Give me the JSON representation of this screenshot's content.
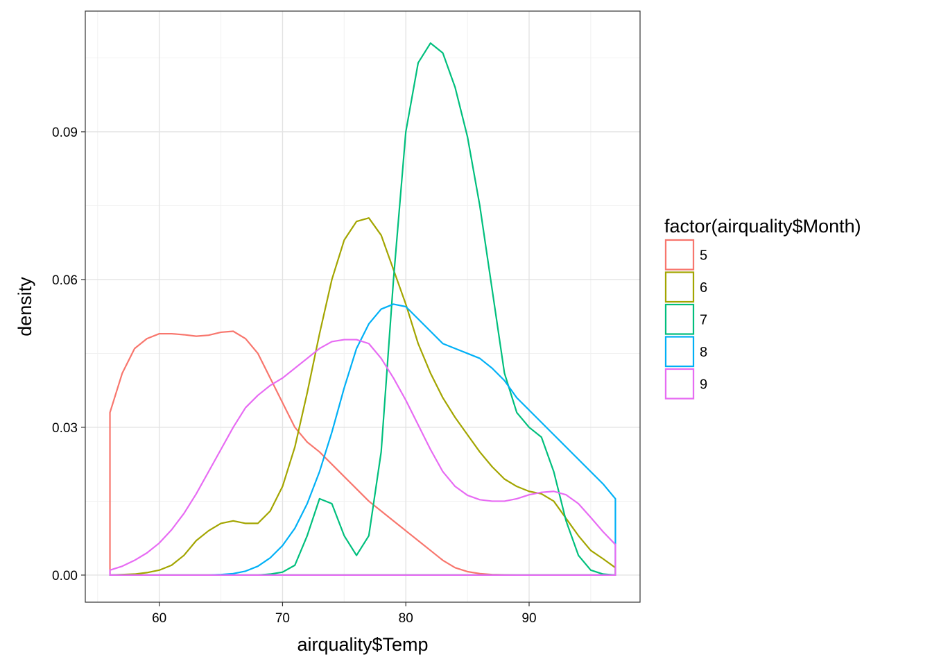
{
  "chart_data": {
    "type": "line",
    "subtype": "density",
    "xlabel": "airquality$Temp",
    "ylabel": "density",
    "xlim": [
      54.0,
      99.0
    ],
    "ylim": [
      -0.0055,
      0.1145
    ],
    "x_ticks": [
      60,
      70,
      80,
      90
    ],
    "x_tick_labels": [
      "60",
      "70",
      "80",
      "90"
    ],
    "x_minor_ticks": [
      55,
      65,
      75,
      85,
      95
    ],
    "y_ticks": [
      0.0,
      0.03,
      0.06,
      0.09
    ],
    "y_tick_labels": [
      "0.00",
      "0.03",
      "0.06",
      "0.09"
    ],
    "y_minor_ticks": [
      0.015,
      0.045,
      0.075,
      0.105
    ],
    "grid": true,
    "panel_border": true,
    "legend": {
      "title": "factor(airquality$Month)",
      "position": "right",
      "entries": [
        "5",
        "6",
        "7",
        "8",
        "9"
      ]
    },
    "series": [
      {
        "name": "5",
        "color": "#F8766D",
        "x": [
          56,
          57,
          58,
          59,
          60,
          61,
          62,
          63,
          64,
          65,
          66,
          67,
          68,
          69,
          70,
          71,
          72,
          73,
          74,
          75,
          76,
          77,
          78,
          79,
          80,
          81,
          82,
          83,
          84,
          85,
          86,
          87,
          88,
          89,
          90,
          91,
          92,
          93,
          94,
          95,
          96,
          97
        ],
        "y": [
          0.033,
          0.041,
          0.046,
          0.048,
          0.049,
          0.049,
          0.0488,
          0.0485,
          0.0487,
          0.0493,
          0.0495,
          0.048,
          0.045,
          0.04,
          0.035,
          0.03,
          0.027,
          0.025,
          0.0225,
          0.02,
          0.0175,
          0.015,
          0.013,
          0.011,
          0.009,
          0.007,
          0.005,
          0.003,
          0.0015,
          0.0007,
          0.0003,
          0.0001,
          5e-05,
          0,
          0,
          0,
          0,
          0,
          0,
          0,
          0,
          0
        ]
      },
      {
        "name": "6",
        "color": "#A3A500",
        "x": [
          56,
          57,
          58,
          59,
          60,
          61,
          62,
          63,
          64,
          65,
          66,
          67,
          68,
          69,
          70,
          71,
          72,
          73,
          74,
          75,
          76,
          77,
          78,
          79,
          80,
          81,
          82,
          83,
          84,
          85,
          86,
          87,
          88,
          89,
          90,
          91,
          92,
          93,
          94,
          95,
          96,
          97
        ],
        "y": [
          0.0,
          0.0001,
          0.0002,
          0.0005,
          0.001,
          0.002,
          0.004,
          0.007,
          0.009,
          0.0105,
          0.011,
          0.0105,
          0.0105,
          0.013,
          0.018,
          0.026,
          0.037,
          0.049,
          0.06,
          0.068,
          0.0718,
          0.0725,
          0.069,
          0.062,
          0.055,
          0.047,
          0.041,
          0.036,
          0.032,
          0.0285,
          0.025,
          0.022,
          0.0195,
          0.018,
          0.017,
          0.0165,
          0.015,
          0.0115,
          0.008,
          0.005,
          0.0033,
          0.0015
        ]
      },
      {
        "name": "7",
        "color": "#00BF7D",
        "x": [
          56,
          57,
          58,
          59,
          60,
          61,
          62,
          63,
          64,
          65,
          66,
          67,
          68,
          69,
          70,
          71,
          72,
          73,
          74,
          75,
          76,
          77,
          78,
          79,
          80,
          81,
          82,
          83,
          84,
          85,
          86,
          87,
          88,
          89,
          90,
          91,
          92,
          93,
          94,
          95,
          96,
          97
        ],
        "y": [
          0,
          0,
          0,
          0,
          0,
          0,
          0,
          0,
          0,
          0,
          0,
          0,
          0,
          0.0002,
          0.0006,
          0.002,
          0.008,
          0.0155,
          0.0145,
          0.008,
          0.004,
          0.008,
          0.025,
          0.06,
          0.09,
          0.104,
          0.108,
          0.106,
          0.099,
          0.089,
          0.075,
          0.058,
          0.041,
          0.033,
          0.03,
          0.028,
          0.021,
          0.011,
          0.004,
          0.001,
          0.0002,
          0.0
        ]
      },
      {
        "name": "8",
        "color": "#00B0F6",
        "x": [
          56,
          57,
          58,
          59,
          60,
          61,
          62,
          63,
          64,
          65,
          66,
          67,
          68,
          69,
          70,
          71,
          72,
          73,
          74,
          75,
          76,
          77,
          78,
          79,
          80,
          81,
          82,
          83,
          84,
          85,
          86,
          87,
          88,
          89,
          90,
          91,
          92,
          93,
          94,
          95,
          96,
          97
        ],
        "y": [
          0,
          0,
          0,
          0,
          0,
          0,
          0,
          0,
          0,
          0.0001,
          0.0003,
          0.0008,
          0.0018,
          0.0035,
          0.006,
          0.0095,
          0.0145,
          0.021,
          0.029,
          0.038,
          0.046,
          0.051,
          0.054,
          0.055,
          0.0545,
          0.052,
          0.0495,
          0.047,
          0.046,
          0.045,
          0.044,
          0.042,
          0.0395,
          0.036,
          0.0335,
          0.031,
          0.0285,
          0.026,
          0.0235,
          0.021,
          0.0185,
          0.0155
        ]
      },
      {
        "name": "9",
        "color": "#E76BF3",
        "x": [
          56,
          57,
          58,
          59,
          60,
          61,
          62,
          63,
          64,
          65,
          66,
          67,
          68,
          69,
          70,
          71,
          72,
          73,
          74,
          75,
          76,
          77,
          78,
          79,
          80,
          81,
          82,
          83,
          84,
          85,
          86,
          87,
          88,
          89,
          90,
          91,
          92,
          93,
          94,
          95,
          96,
          97
        ],
        "y": [
          0.001,
          0.0018,
          0.003,
          0.0045,
          0.0065,
          0.0092,
          0.0125,
          0.0165,
          0.021,
          0.0255,
          0.03,
          0.034,
          0.0365,
          0.0385,
          0.04,
          0.042,
          0.044,
          0.046,
          0.0474,
          0.0478,
          0.0478,
          0.047,
          0.044,
          0.04,
          0.0355,
          0.0305,
          0.0255,
          0.021,
          0.018,
          0.0162,
          0.0153,
          0.015,
          0.015,
          0.0155,
          0.0163,
          0.0168,
          0.017,
          0.0163,
          0.0145,
          0.0117,
          0.0088,
          0.0062
        ]
      }
    ]
  }
}
